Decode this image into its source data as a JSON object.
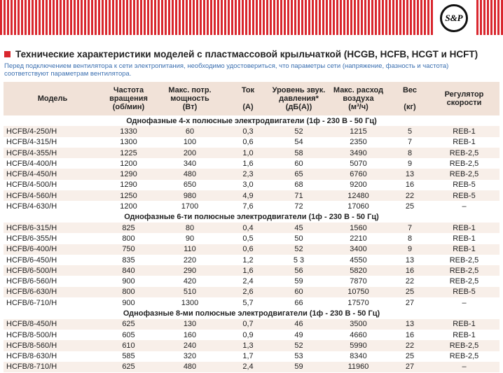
{
  "header": {
    "logo": "S&P",
    "title": "Технические характеристики моделей с пластмассовой крыльчаткой (HCGB, HCFB, HCGT и HCFT)",
    "note": "Перед подключением вентилятора к сети электропитания, необходимо удостовериться, что параметры сети (напряжение, фазность и частота) соответствуют параметрам вентилятора."
  },
  "table": {
    "columns": [
      [
        "Модель"
      ],
      [
        "Частота",
        "вращения",
        "(об/мин)"
      ],
      [
        "Макс. потр.",
        "мощность",
        "(Вт)"
      ],
      [
        "Ток",
        "",
        "(А)"
      ],
      [
        "Уровень звук.",
        "давления*",
        "(дБ(А))"
      ],
      [
        "Макс. расход",
        "воздуха",
        "(м³/ч)"
      ],
      [
        "Вес",
        "",
        "(кг)"
      ],
      [
        "Регулятор",
        "скорости"
      ]
    ],
    "sections": [
      {
        "title": "Однофазные 4-х полюсные электродвигатели (1ф - 230 В - 50 Гц)",
        "rows": [
          [
            "HCFB/4-250/H",
            "1330",
            "60",
            "0,3",
            "52",
            "1215",
            "5",
            "REB-1"
          ],
          [
            "HCFB/4-315/H",
            "1300",
            "100",
            "0,6",
            "54",
            "2350",
            "7",
            "REB-1"
          ],
          [
            "HCFB/4-355/H",
            "1225",
            "200",
            "1,0",
            "58",
            "3490",
            "8",
            "REB-2,5"
          ],
          [
            "HCFB/4-400/H",
            "1200",
            "340",
            "1,6",
            "60",
            "5070",
            "9",
            "REB-2,5"
          ],
          [
            "HCFB/4-450/H",
            "1290",
            "480",
            "2,3",
            "65",
            "6760",
            "13",
            "REB-2,5"
          ],
          [
            "HCFB/4-500/H",
            "1290",
            "650",
            "3,0",
            "68",
            "9200",
            "16",
            "REB-5"
          ],
          [
            "HCFB/4-560/H",
            "1250",
            "980",
            "4,9",
            "71",
            "12480",
            "22",
            "REB-5"
          ],
          [
            "HCFB/4-630/H",
            "1200",
            "1700",
            "7,6",
            "72",
            "17060",
            "25",
            "–"
          ]
        ]
      },
      {
        "title": "Однофазные 6-ти полюсные электродвигатели (1ф - 230 В - 50 Гц)",
        "rows": [
          [
            "HCFB/6-315/H",
            "825",
            "80",
            "0,4",
            "45",
            "1560",
            "7",
            "REB-1"
          ],
          [
            "HCFB/6-355/H",
            "800",
            "90",
            "0,5",
            "50",
            "2210",
            "8",
            "REB-1"
          ],
          [
            "HCFB/6-400/H",
            "750",
            "110",
            "0,6",
            "52",
            "3400",
            "9",
            "REB-1"
          ],
          [
            "HCFB/6-450/H",
            "835",
            "220",
            "1,2",
            "5 3",
            "4550",
            "13",
            "REB-2,5"
          ],
          [
            "HCFB/6-500/H",
            "840",
            "290",
            "1,6",
            "56",
            "5820",
            "16",
            "REB-2,5"
          ],
          [
            "HCFB/6-560/H",
            "900",
            "420",
            "2,4",
            "59",
            "7870",
            "22",
            "REB-2,5"
          ],
          [
            "HCFB/6-630/H",
            "800",
            "510",
            "2,6",
            "60",
            "10750",
            "25",
            "REB-5"
          ],
          [
            "HCFB/6-710/H",
            "900",
            "1300",
            "5,7",
            "66",
            "17570",
            "27",
            "–"
          ]
        ]
      },
      {
        "title": "Однофазные 8-ми полюсные электродвигатели (1ф - 230 В - 50 Гц)",
        "rows": [
          [
            "HCFB/8-450/H",
            "625",
            "130",
            "0,7",
            "46",
            "3500",
            "13",
            "REB-1"
          ],
          [
            "HCFB/8-500/H",
            "605",
            "160",
            "0,9",
            "49",
            "4660",
            "16",
            "REB-1"
          ],
          [
            "HCFB/8-560/H",
            "610",
            "240",
            "1,3",
            "52",
            "5990",
            "22",
            "REB-2,5"
          ],
          [
            "HCFB/8-630/H",
            "585",
            "320",
            "1,7",
            "53",
            "8340",
            "25",
            "REB-2,5"
          ],
          [
            "HCFB/8-710/H",
            "625",
            "480",
            "2,4",
            "59",
            "11960",
            "27",
            "–"
          ]
        ]
      }
    ]
  }
}
